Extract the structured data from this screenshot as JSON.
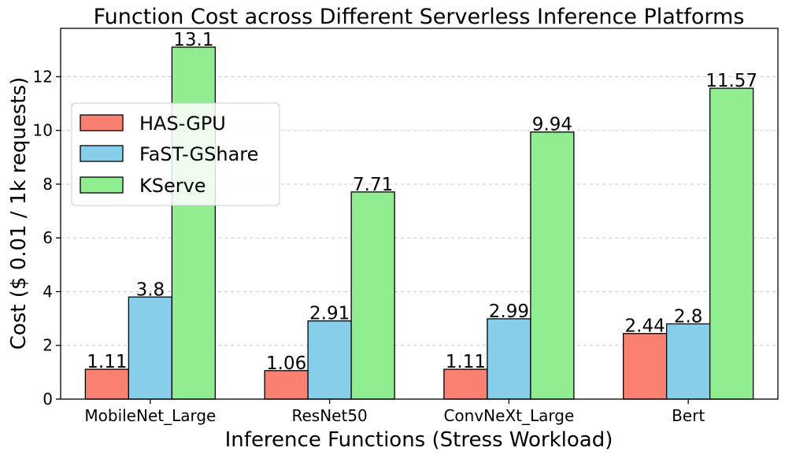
{
  "chart_data": {
    "type": "bar",
    "title": "Function Cost across Different Serverless Inference Platforms",
    "xlabel": "Inference Functions (Stress Workload)",
    "ylabel": "Cost ($ 0.01 / 1k requests)",
    "categories": [
      "MobileNet_Large",
      "ResNet50",
      "ConvNeXt_Large",
      "Bert"
    ],
    "series": [
      {
        "name": "HAS-GPU",
        "color": "#fa8072",
        "values": [
          1.11,
          1.06,
          1.11,
          2.44
        ]
      },
      {
        "name": "FaST-GShare",
        "color": "#87ceeb",
        "values": [
          3.8,
          2.91,
          2.99,
          2.8
        ]
      },
      {
        "name": "KServe",
        "color": "#90ee90",
        "values": [
          13.1,
          7.71,
          9.94,
          11.57
        ]
      }
    ],
    "data_labels": [
      [
        "1.11",
        "1.06",
        "1.11",
        "2.44"
      ],
      [
        "3.8",
        "2.91",
        "2.99",
        "2.8"
      ],
      [
        "13.1",
        "7.71",
        "9.94",
        "11.57"
      ]
    ],
    "ylim": [
      0,
      13.8
    ],
    "yticks": [
      0,
      2,
      4,
      6,
      8,
      10,
      12
    ],
    "grid": true,
    "legend_position": "upper-left"
  }
}
